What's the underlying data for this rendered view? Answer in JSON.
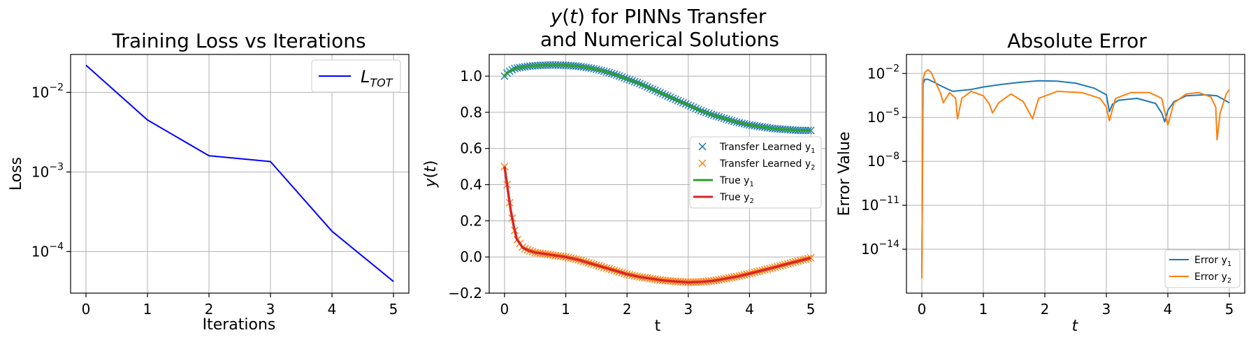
{
  "chart_data": [
    {
      "type": "line",
      "title": "Training Loss vs Iterations",
      "xlabel": "Iterations",
      "ylabel": "Loss",
      "yscale": "log",
      "xlim": [
        -0.25,
        5.25
      ],
      "ylim": [
        3e-05,
        0.03
      ],
      "grid": true,
      "legend": "top-right",
      "x_ticks": [
        {
          "v": 0,
          "t": "0"
        },
        {
          "v": 1,
          "t": "1"
        },
        {
          "v": 2,
          "t": "2"
        },
        {
          "v": 3,
          "t": "3"
        },
        {
          "v": 4,
          "t": "4"
        },
        {
          "v": 5,
          "t": "5"
        }
      ],
      "y_ticks": [
        {
          "v": 0.0001,
          "b": "10",
          "e": "−4"
        },
        {
          "v": 0.001,
          "b": "10",
          "e": "−3"
        },
        {
          "v": 0.01,
          "b": "10",
          "e": "−2"
        }
      ],
      "series": [
        {
          "name": "L",
          "name_sub": "TOT",
          "color": "#0000ff",
          "x": [
            0,
            1,
            2,
            3,
            4,
            5
          ],
          "y": [
            0.022,
            0.0045,
            0.0016,
            0.00135,
            0.00018,
            4.2e-05
          ]
        }
      ]
    },
    {
      "type": "line",
      "title": "y(t) for PINNs Transfer",
      "title_line2": "and Numerical Solutions",
      "xlabel": "t",
      "ylabel": "y(t)",
      "xlim": [
        -0.25,
        5.25
      ],
      "ylim": [
        -0.2,
        1.12
      ],
      "grid": true,
      "legend": "center-right",
      "x_ticks": [
        {
          "v": 0,
          "t": "0"
        },
        {
          "v": 1,
          "t": "1"
        },
        {
          "v": 2,
          "t": "2"
        },
        {
          "v": 3,
          "t": "3"
        },
        {
          "v": 4,
          "t": "4"
        },
        {
          "v": 5,
          "t": "5"
        }
      ],
      "y_ticks": [
        {
          "v": -0.2,
          "t": "−0.2"
        },
        {
          "v": 0,
          "t": "0.0"
        },
        {
          "v": 0.2,
          "t": "0.2"
        },
        {
          "v": 0.4,
          "t": "0.4"
        },
        {
          "v": 0.6,
          "t": "0.6"
        },
        {
          "v": 0.8,
          "t": "0.8"
        },
        {
          "v": 1.0,
          "t": "1.0"
        }
      ],
      "x": [
        0,
        0.05,
        0.1,
        0.15,
        0.2,
        0.3,
        0.4,
        0.5,
        0.6,
        0.8,
        1.0,
        1.2,
        1.4,
        1.6,
        1.8,
        2.0,
        2.2,
        2.4,
        2.6,
        2.8,
        3.0,
        3.2,
        3.4,
        3.6,
        3.8,
        4.0,
        4.2,
        4.4,
        4.6,
        4.8,
        5.0
      ],
      "series": [
        {
          "name": "Transfer Learned y",
          "name_sub": "1",
          "style": "marker",
          "color": "#1f77b4",
          "y": [
            1.0,
            1.02,
            1.03,
            1.04,
            1.045,
            1.05,
            1.055,
            1.058,
            1.06,
            1.062,
            1.06,
            1.055,
            1.045,
            1.03,
            1.01,
            0.985,
            0.96,
            0.93,
            0.9,
            0.87,
            0.84,
            0.81,
            0.785,
            0.765,
            0.745,
            0.73,
            0.72,
            0.71,
            0.705,
            0.7,
            0.7
          ]
        },
        {
          "name": "Transfer Learned y",
          "name_sub": "2",
          "style": "marker",
          "color": "#ff7f0e",
          "y": [
            0.5,
            0.38,
            0.26,
            0.17,
            0.1,
            0.05,
            0.035,
            0.025,
            0.02,
            0.01,
            0.0,
            -0.015,
            -0.035,
            -0.055,
            -0.075,
            -0.095,
            -0.11,
            -0.12,
            -0.13,
            -0.135,
            -0.14,
            -0.138,
            -0.132,
            -0.12,
            -0.108,
            -0.092,
            -0.075,
            -0.058,
            -0.04,
            -0.022,
            -0.005
          ]
        },
        {
          "name": "True y",
          "name_sub": "1",
          "style": "line",
          "color": "#2ca02c",
          "y": [
            1.0,
            1.02,
            1.03,
            1.04,
            1.045,
            1.05,
            1.055,
            1.058,
            1.06,
            1.062,
            1.06,
            1.055,
            1.045,
            1.03,
            1.01,
            0.985,
            0.96,
            0.93,
            0.9,
            0.87,
            0.84,
            0.81,
            0.785,
            0.765,
            0.745,
            0.73,
            0.72,
            0.71,
            0.705,
            0.7,
            0.7
          ]
        },
        {
          "name": "True y",
          "name_sub": "2",
          "style": "line",
          "color": "#d62728",
          "y": [
            0.5,
            0.38,
            0.26,
            0.17,
            0.1,
            0.05,
            0.035,
            0.025,
            0.02,
            0.01,
            0.0,
            -0.015,
            -0.035,
            -0.055,
            -0.075,
            -0.095,
            -0.11,
            -0.12,
            -0.13,
            -0.135,
            -0.14,
            -0.138,
            -0.132,
            -0.12,
            -0.108,
            -0.092,
            -0.075,
            -0.058,
            -0.04,
            -0.022,
            -0.005
          ]
        }
      ]
    },
    {
      "type": "line",
      "title": "Absolute Error",
      "xlabel": "t",
      "ylabel": "Error Value",
      "yscale": "log",
      "xlim": [
        -0.25,
        5.25
      ],
      "ylim": [
        1e-17,
        0.2
      ],
      "grid": true,
      "legend": "bottom-right",
      "x_ticks": [
        {
          "v": 0,
          "t": "0"
        },
        {
          "v": 1,
          "t": "1"
        },
        {
          "v": 2,
          "t": "2"
        },
        {
          "v": 3,
          "t": "3"
        },
        {
          "v": 4,
          "t": "4"
        },
        {
          "v": 5,
          "t": "5"
        }
      ],
      "y_ticks": [
        {
          "v": 1e-14,
          "b": "10",
          "e": "−14"
        },
        {
          "v": 1e-11,
          "b": "10",
          "e": "−11"
        },
        {
          "v": 1e-08,
          "b": "10",
          "e": "−8"
        },
        {
          "v": 1e-05,
          "b": "10",
          "e": "−5"
        },
        {
          "v": 0.01,
          "b": "10",
          "e": "−2"
        }
      ],
      "series": [
        {
          "name": "Error y",
          "name_sub": "1",
          "color": "#1f77b4",
          "x": [
            0,
            0.02,
            0.05,
            0.1,
            0.2,
            0.3,
            0.5,
            0.8,
            1.0,
            1.3,
            1.6,
            1.9,
            2.2,
            2.5,
            2.8,
            3.0,
            3.05,
            3.1,
            3.2,
            3.5,
            3.8,
            3.9,
            3.95,
            4.0,
            4.1,
            4.3,
            4.6,
            4.8,
            5.0
          ],
          "y": [
            2e-16,
            0.002,
            0.004,
            0.004,
            0.0025,
            0.0015,
            0.0006,
            0.0008,
            0.0012,
            0.0018,
            0.0025,
            0.0032,
            0.003,
            0.0022,
            0.001,
            0.00035,
            2.5e-05,
            8e-05,
            0.00015,
            0.0002,
            9e-05,
            2e-05,
            5e-06,
            3e-05,
            0.00012,
            0.0003,
            0.00035,
            0.0003,
            0.0001
          ]
        },
        {
          "name": "Error y",
          "name_sub": "2",
          "color": "#ff7f0e",
          "x": [
            0,
            0.02,
            0.05,
            0.1,
            0.15,
            0.2,
            0.3,
            0.35,
            0.45,
            0.55,
            0.58,
            0.65,
            0.8,
            1.0,
            1.1,
            1.15,
            1.25,
            1.45,
            1.65,
            1.75,
            1.8,
            1.9,
            2.2,
            2.6,
            2.9,
            3.0,
            3.05,
            3.15,
            3.4,
            3.7,
            3.9,
            3.97,
            4.0,
            4.1,
            4.3,
            4.5,
            4.7,
            4.78,
            4.8,
            4.85,
            4.95,
            5.0
          ],
          "y": [
            1e-16,
            0.004,
            0.012,
            0.018,
            0.012,
            0.004,
            0.0005,
            0.0001,
            0.0005,
            0.0002,
            8e-06,
            0.0002,
            0.0006,
            0.0003,
            8e-05,
            2e-05,
            0.0001,
            0.0004,
            0.00012,
            2e-05,
            8e-06,
            0.0002,
            0.0006,
            0.0005,
            0.0002,
            5e-05,
            6e-06,
            0.0002,
            0.0005,
            0.0005,
            0.0002,
            1e-05,
            3e-06,
            0.0001,
            0.0004,
            0.0005,
            0.00025,
            5e-05,
            3e-07,
            2e-05,
            0.0004,
            0.0008
          ]
        }
      ]
    }
  ]
}
